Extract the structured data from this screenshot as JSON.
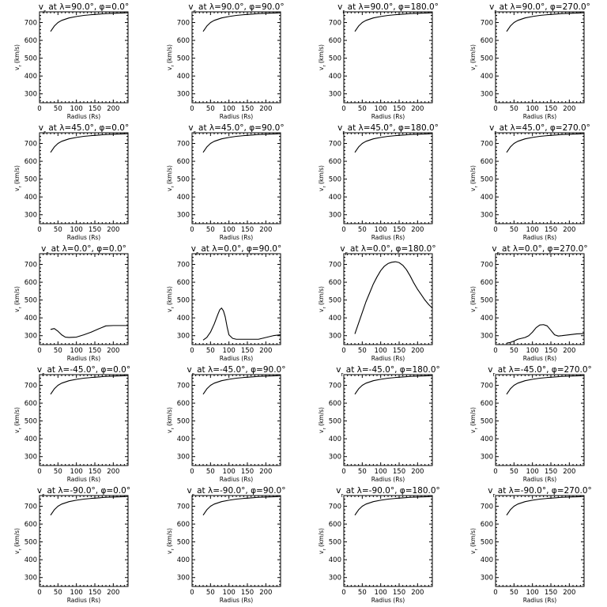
{
  "chart_data": {
    "type": "line",
    "xlabel": "Radius (Rs)",
    "ylabel": "v_r (km/s)",
    "xlim": [
      0,
      240
    ],
    "ylim": [
      250,
      760
    ],
    "xticks": [
      0,
      50,
      100,
      150,
      200
    ],
    "yticks": [
      300,
      400,
      500,
      600,
      700
    ],
    "grid": false,
    "panels": [
      {
        "title": "v_r at λ=90.0°, φ=0.0°",
        "series": [
          {
            "x": [
              30,
              40,
              50,
              60,
              80,
              100,
              120,
              140,
              160,
              180,
              200,
              220,
              240
            ],
            "y": [
              650,
              680,
              700,
              712,
              726,
              734,
              740,
              744,
              747,
              750,
              752,
              753,
              755
            ]
          }
        ]
      },
      {
        "title": "v_r at λ=90.0°, φ=90.0°",
        "series": [
          {
            "x": [
              30,
              40,
              50,
              60,
              80,
              100,
              120,
              140,
              160,
              180,
              200,
              220,
              240
            ],
            "y": [
              650,
              680,
              700,
              712,
              726,
              734,
              740,
              744,
              747,
              750,
              752,
              753,
              755
            ]
          }
        ]
      },
      {
        "title": "v_r at λ=90.0°, φ=180.0°",
        "series": [
          {
            "x": [
              30,
              40,
              50,
              60,
              80,
              100,
              120,
              140,
              160,
              180,
              200,
              220,
              240
            ],
            "y": [
              650,
              680,
              700,
              712,
              726,
              734,
              740,
              744,
              747,
              750,
              752,
              753,
              755
            ]
          }
        ]
      },
      {
        "title": "v_r at λ=90.0°, φ=270.0°",
        "series": [
          {
            "x": [
              30,
              40,
              50,
              60,
              80,
              100,
              120,
              140,
              160,
              180,
              200,
              220,
              240
            ],
            "y": [
              650,
              680,
              700,
              712,
              726,
              734,
              740,
              744,
              747,
              750,
              752,
              753,
              755
            ]
          }
        ]
      },
      {
        "title": "v_r at λ=45.0°, φ=0.0°",
        "series": [
          {
            "x": [
              30,
              40,
              50,
              60,
              80,
              100,
              120,
              140,
              160,
              180,
              200,
              220,
              240
            ],
            "y": [
              650,
              680,
              700,
              712,
              726,
              734,
              740,
              744,
              747,
              750,
              752,
              753,
              755
            ]
          }
        ]
      },
      {
        "title": "v_r at λ=45.0°, φ=90.0°",
        "series": [
          {
            "x": [
              30,
              40,
              50,
              60,
              80,
              100,
              120,
              140,
              160,
              180,
              200,
              220,
              240
            ],
            "y": [
              650,
              680,
              700,
              712,
              726,
              734,
              740,
              744,
              747,
              750,
              752,
              753,
              755
            ]
          }
        ]
      },
      {
        "title": "v_r at λ=45.0°, φ=180.0°",
        "series": [
          {
            "x": [
              30,
              40,
              50,
              60,
              80,
              100,
              120,
              140,
              160,
              180,
              200,
              220,
              240
            ],
            "y": [
              650,
              680,
              700,
              712,
              726,
              734,
              740,
              744,
              747,
              750,
              752,
              753,
              755
            ]
          }
        ]
      },
      {
        "title": "v_r at λ=45.0°, φ=270.0°",
        "series": [
          {
            "x": [
              30,
              40,
              50,
              60,
              80,
              100,
              120,
              140,
              160,
              180,
              200,
              220,
              240
            ],
            "y": [
              650,
              680,
              700,
              712,
              726,
              734,
              740,
              744,
              747,
              750,
              752,
              753,
              755
            ]
          }
        ]
      },
      {
        "title": "v_r at λ=0.0°, φ=0.0°",
        "series": [
          {
            "x": [
              30,
              40,
              50,
              60,
              70,
              80,
              100,
              120,
              140,
              160,
              180,
              200,
              220,
              240
            ],
            "y": [
              335,
              340,
              325,
              305,
              292,
              290,
              292,
              305,
              320,
              338,
              355,
              357,
              357,
              357
            ]
          }
        ]
      },
      {
        "title": "v_r at λ=0.0°, φ=90.0°",
        "series": [
          {
            "x": [
              30,
              40,
              50,
              60,
              70,
              75,
              80,
              85,
              90,
              95,
              100,
              110,
              120,
              140,
              160,
              180,
              200,
              220,
              240
            ],
            "y": [
              275,
              290,
              320,
              365,
              420,
              445,
              455,
              440,
              405,
              350,
              305,
              285,
              280,
              280,
              280,
              280,
              290,
              300,
              305
            ]
          }
        ]
      },
      {
        "title": "v_r at λ=0.0°, φ=180.0°",
        "series": [
          {
            "x": [
              30,
              40,
              50,
              60,
              70,
              80,
              90,
              100,
              110,
              120,
              130,
              140,
              150,
              160,
              170,
              180,
              190,
              200,
              210,
              220,
              230,
              240
            ],
            "y": [
              310,
              370,
              430,
              490,
              540,
              590,
              630,
              665,
              690,
              705,
              712,
              715,
              710,
              695,
              670,
              635,
              595,
              560,
              530,
              500,
              475,
              455
            ]
          }
        ]
      },
      {
        "title": "v_r at λ=0.0°, φ=270.0°",
        "series": [
          {
            "x": [
              30,
              40,
              50,
              60,
              70,
              80,
              90,
              100,
              110,
              120,
              130,
              140,
              150,
              160,
              170,
              180,
              200,
              220,
              240
            ],
            "y": [
              258,
              262,
              270,
              280,
              285,
              290,
              300,
              320,
              345,
              360,
              362,
              355,
              330,
              305,
              298,
              300,
              305,
              310,
              312
            ]
          }
        ]
      },
      {
        "title": "v_r at λ=-45.0°, φ=0.0°",
        "series": [
          {
            "x": [
              30,
              40,
              50,
              60,
              80,
              100,
              120,
              140,
              160,
              180,
              200,
              220,
              240
            ],
            "y": [
              650,
              680,
              700,
              712,
              726,
              734,
              740,
              744,
              747,
              750,
              752,
              753,
              755
            ]
          }
        ]
      },
      {
        "title": "v_r at λ=-45.0°, φ=90.0°",
        "series": [
          {
            "x": [
              30,
              40,
              50,
              60,
              80,
              100,
              120,
              140,
              160,
              180,
              200,
              220,
              240
            ],
            "y": [
              650,
              680,
              700,
              712,
              726,
              734,
              740,
              744,
              747,
              750,
              752,
              753,
              755
            ]
          }
        ]
      },
      {
        "title": "v_r at λ=-45.0°, φ=180.0°",
        "series": [
          {
            "x": [
              30,
              40,
              50,
              60,
              80,
              100,
              120,
              140,
              160,
              180,
              200,
              220,
              240
            ],
            "y": [
              650,
              680,
              700,
              712,
              726,
              734,
              740,
              744,
              747,
              750,
              752,
              753,
              755
            ]
          }
        ]
      },
      {
        "title": "v_r at λ=-45.0°, φ=270.0°",
        "series": [
          {
            "x": [
              30,
              40,
              50,
              60,
              80,
              100,
              120,
              140,
              160,
              180,
              200,
              220,
              240
            ],
            "y": [
              650,
              680,
              700,
              712,
              726,
              734,
              740,
              744,
              747,
              750,
              752,
              753,
              755
            ]
          }
        ]
      },
      {
        "title": "v_r at λ=-90.0°, φ=0.0°",
        "series": [
          {
            "x": [
              30,
              40,
              50,
              60,
              80,
              100,
              120,
              140,
              160,
              180,
              200,
              220,
              240
            ],
            "y": [
              650,
              680,
              700,
              712,
              726,
              734,
              740,
              744,
              747,
              750,
              752,
              753,
              755
            ]
          }
        ]
      },
      {
        "title": "v_r at λ=-90.0°, φ=90.0°",
        "series": [
          {
            "x": [
              30,
              40,
              50,
              60,
              80,
              100,
              120,
              140,
              160,
              180,
              200,
              220,
              240
            ],
            "y": [
              650,
              680,
              700,
              712,
              726,
              734,
              740,
              744,
              747,
              750,
              752,
              753,
              755
            ]
          }
        ]
      },
      {
        "title": "v_r at λ=-90.0°, φ=180.0°",
        "series": [
          {
            "x": [
              30,
              40,
              50,
              60,
              80,
              100,
              120,
              140,
              160,
              180,
              200,
              220,
              240
            ],
            "y": [
              650,
              680,
              700,
              712,
              726,
              734,
              740,
              744,
              747,
              750,
              752,
              753,
              755
            ]
          }
        ]
      },
      {
        "title": "v_r at λ=-90.0°, φ=270.0°",
        "series": [
          {
            "x": [
              30,
              40,
              50,
              60,
              80,
              100,
              120,
              140,
              160,
              180,
              200,
              220,
              240
            ],
            "y": [
              650,
              680,
              700,
              712,
              726,
              734,
              740,
              744,
              747,
              750,
              752,
              753,
              755
            ]
          }
        ]
      }
    ]
  }
}
